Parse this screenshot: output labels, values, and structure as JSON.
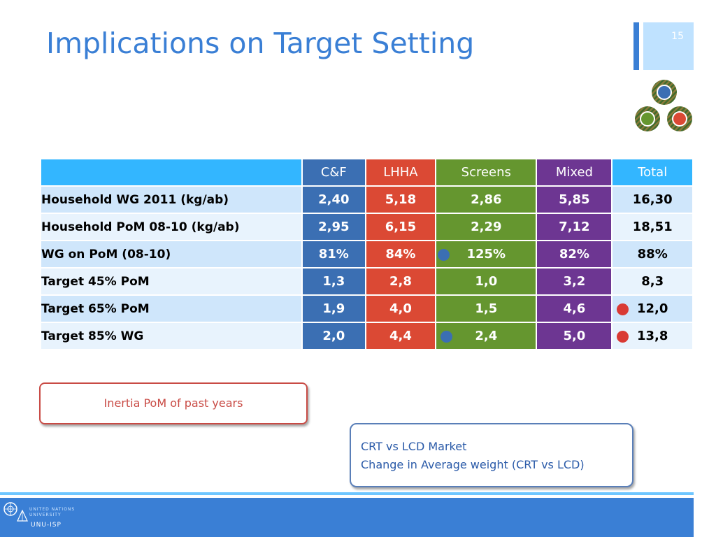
{
  "slide": {
    "title": "Implications on Target Setting",
    "number": "15"
  },
  "table": {
    "headers": [
      "C&F",
      "LHHA",
      "Screens",
      "Mixed",
      "Total"
    ],
    "rows": [
      {
        "label": "Household WG 2011 (kg/ab)",
        "cf": "2,40",
        "lhha": "5,18",
        "screens": "2,86",
        "mixed": "5,85",
        "total": "16,30"
      },
      {
        "label": "Household PoM 08-10 (kg/ab)",
        "cf": "2,95",
        "lhha": "6,15",
        "screens": "2,29",
        "mixed": "7,12",
        "total": "18,51"
      },
      {
        "label": "WG on PoM (08-10)",
        "cf": "81%",
        "lhha": "84%",
        "screens": "125%",
        "mixed": "82%",
        "total": "88%"
      },
      {
        "label": "Target 45% PoM",
        "cf": "1,3",
        "lhha": "2,8",
        "screens": "1,0",
        "mixed": "3,2",
        "total": "8,3"
      },
      {
        "label": "Target 65% PoM",
        "cf": "1,9",
        "lhha": "4,0",
        "screens": "1,5",
        "mixed": "4,6",
        "total": "12,0"
      },
      {
        "label": "Target 85% WG",
        "cf": "2,0",
        "lhha": "4,4",
        "screens": "2,4",
        "mixed": "5,0",
        "total": "13,8"
      }
    ]
  },
  "callouts": {
    "inertia": "Inertia PoM of past years",
    "market_line1": "CRT vs LCD Market",
    "market_line2": "Change in Average weight (CRT vs LCD)"
  },
  "footer": {
    "org_line1": "UNITED NATIONS",
    "org_line2": "UNIVERSITY",
    "org_abbr": "UNU-ISP"
  },
  "colors": {
    "accent": "#3a7fd5",
    "cf": "#3b6fb3",
    "lhha": "#db4934",
    "screens": "#65962f",
    "mixed": "#6d3692",
    "total_header": "#33b6ff"
  },
  "icons": {
    "logo": "three-circles-logo-icon",
    "marker_blue": "blue-dot-icon",
    "marker_red": "red-dot-icon",
    "footer_logo": "un-emblem-icon"
  }
}
